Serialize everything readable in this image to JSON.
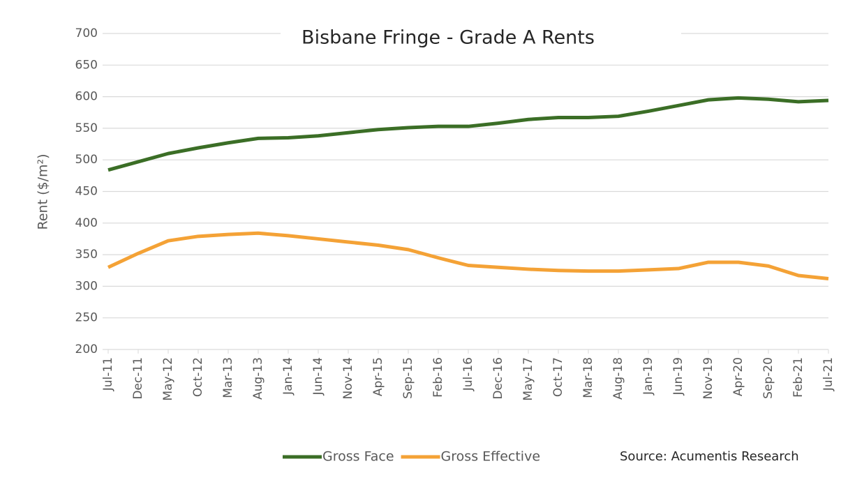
{
  "chart_data": {
    "type": "line",
    "title": "Bisbane Fringe - Grade A Rents",
    "y_label": "Rent ($/m²)",
    "source": "Source: Acumentis Research",
    "categories": [
      "Jul-11",
      "Dec-11",
      "May-12",
      "Oct-12",
      "Mar-13",
      "Aug-13",
      "Jan-14",
      "Jun-14",
      "Nov-14",
      "Apr-15",
      "Sep-15",
      "Feb-16",
      "Jul-16",
      "Dec-16",
      "May-17",
      "Oct-17",
      "Mar-18",
      "Aug-18",
      "Jan-19",
      "Jun-19",
      "Nov-19",
      "Apr-20",
      "Sep-20",
      "Feb-21",
      "Jul-21"
    ],
    "series": [
      {
        "name": "Gross Face",
        "color": "#3b6e26",
        "values": [
          484,
          497,
          510,
          519,
          527,
          534,
          535,
          538,
          543,
          548,
          551,
          553,
          553,
          558,
          564,
          567,
          567,
          569,
          577,
          586,
          595,
          598,
          596,
          592,
          594
        ]
      },
      {
        "name": "Gross Effective",
        "color": "#f4a236",
        "values": [
          330,
          352,
          372,
          379,
          382,
          384,
          380,
          375,
          370,
          365,
          358,
          345,
          333,
          330,
          327,
          325,
          324,
          324,
          326,
          328,
          338,
          338,
          332,
          317,
          312
        ]
      }
    ],
    "ylim": [
      200,
      700
    ],
    "yticks": [
      200,
      250,
      300,
      350,
      400,
      450,
      500,
      550,
      600,
      650,
      700
    ],
    "grid": true,
    "legend": "bottom"
  }
}
